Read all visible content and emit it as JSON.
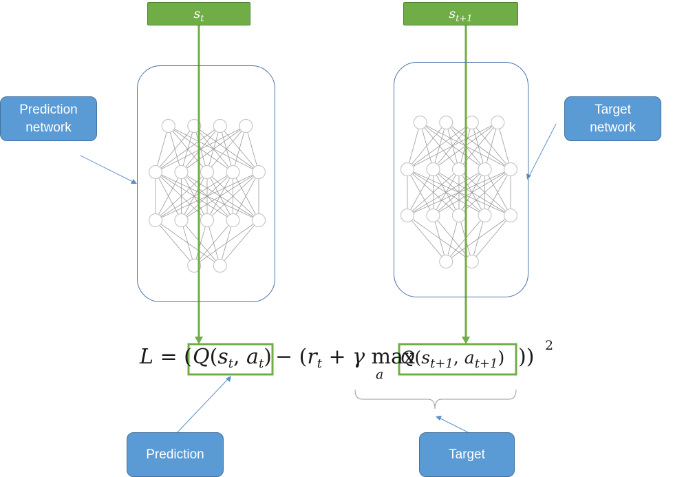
{
  "inputs": {
    "current_state": {
      "base": "s",
      "sub": "t"
    },
    "next_state": {
      "base": "s",
      "sub": "t+1"
    }
  },
  "callouts": {
    "prediction_network": "Prediction network",
    "target_network": "Target network",
    "prediction": "Prediction",
    "target": "Target"
  },
  "equation": {
    "lhs": "L = (",
    "prediction_term": "Q(s_t, a_t)",
    "middle": "− (r_t + γ max",
    "max_subscript": "a",
    "target_term": "Q(s_{t+1}, a_{t+1})",
    "closing": "))",
    "exponent": "2"
  },
  "network": {
    "layer_sizes": [
      4,
      5,
      5,
      2
    ]
  },
  "colors": {
    "green": "#70ad47",
    "blue": "#5b9bd5",
    "frame": "#4a6fa8",
    "node": "#c8c8c8",
    "edge": "#9a9a9a",
    "pointer": "#5b8fc9"
  }
}
